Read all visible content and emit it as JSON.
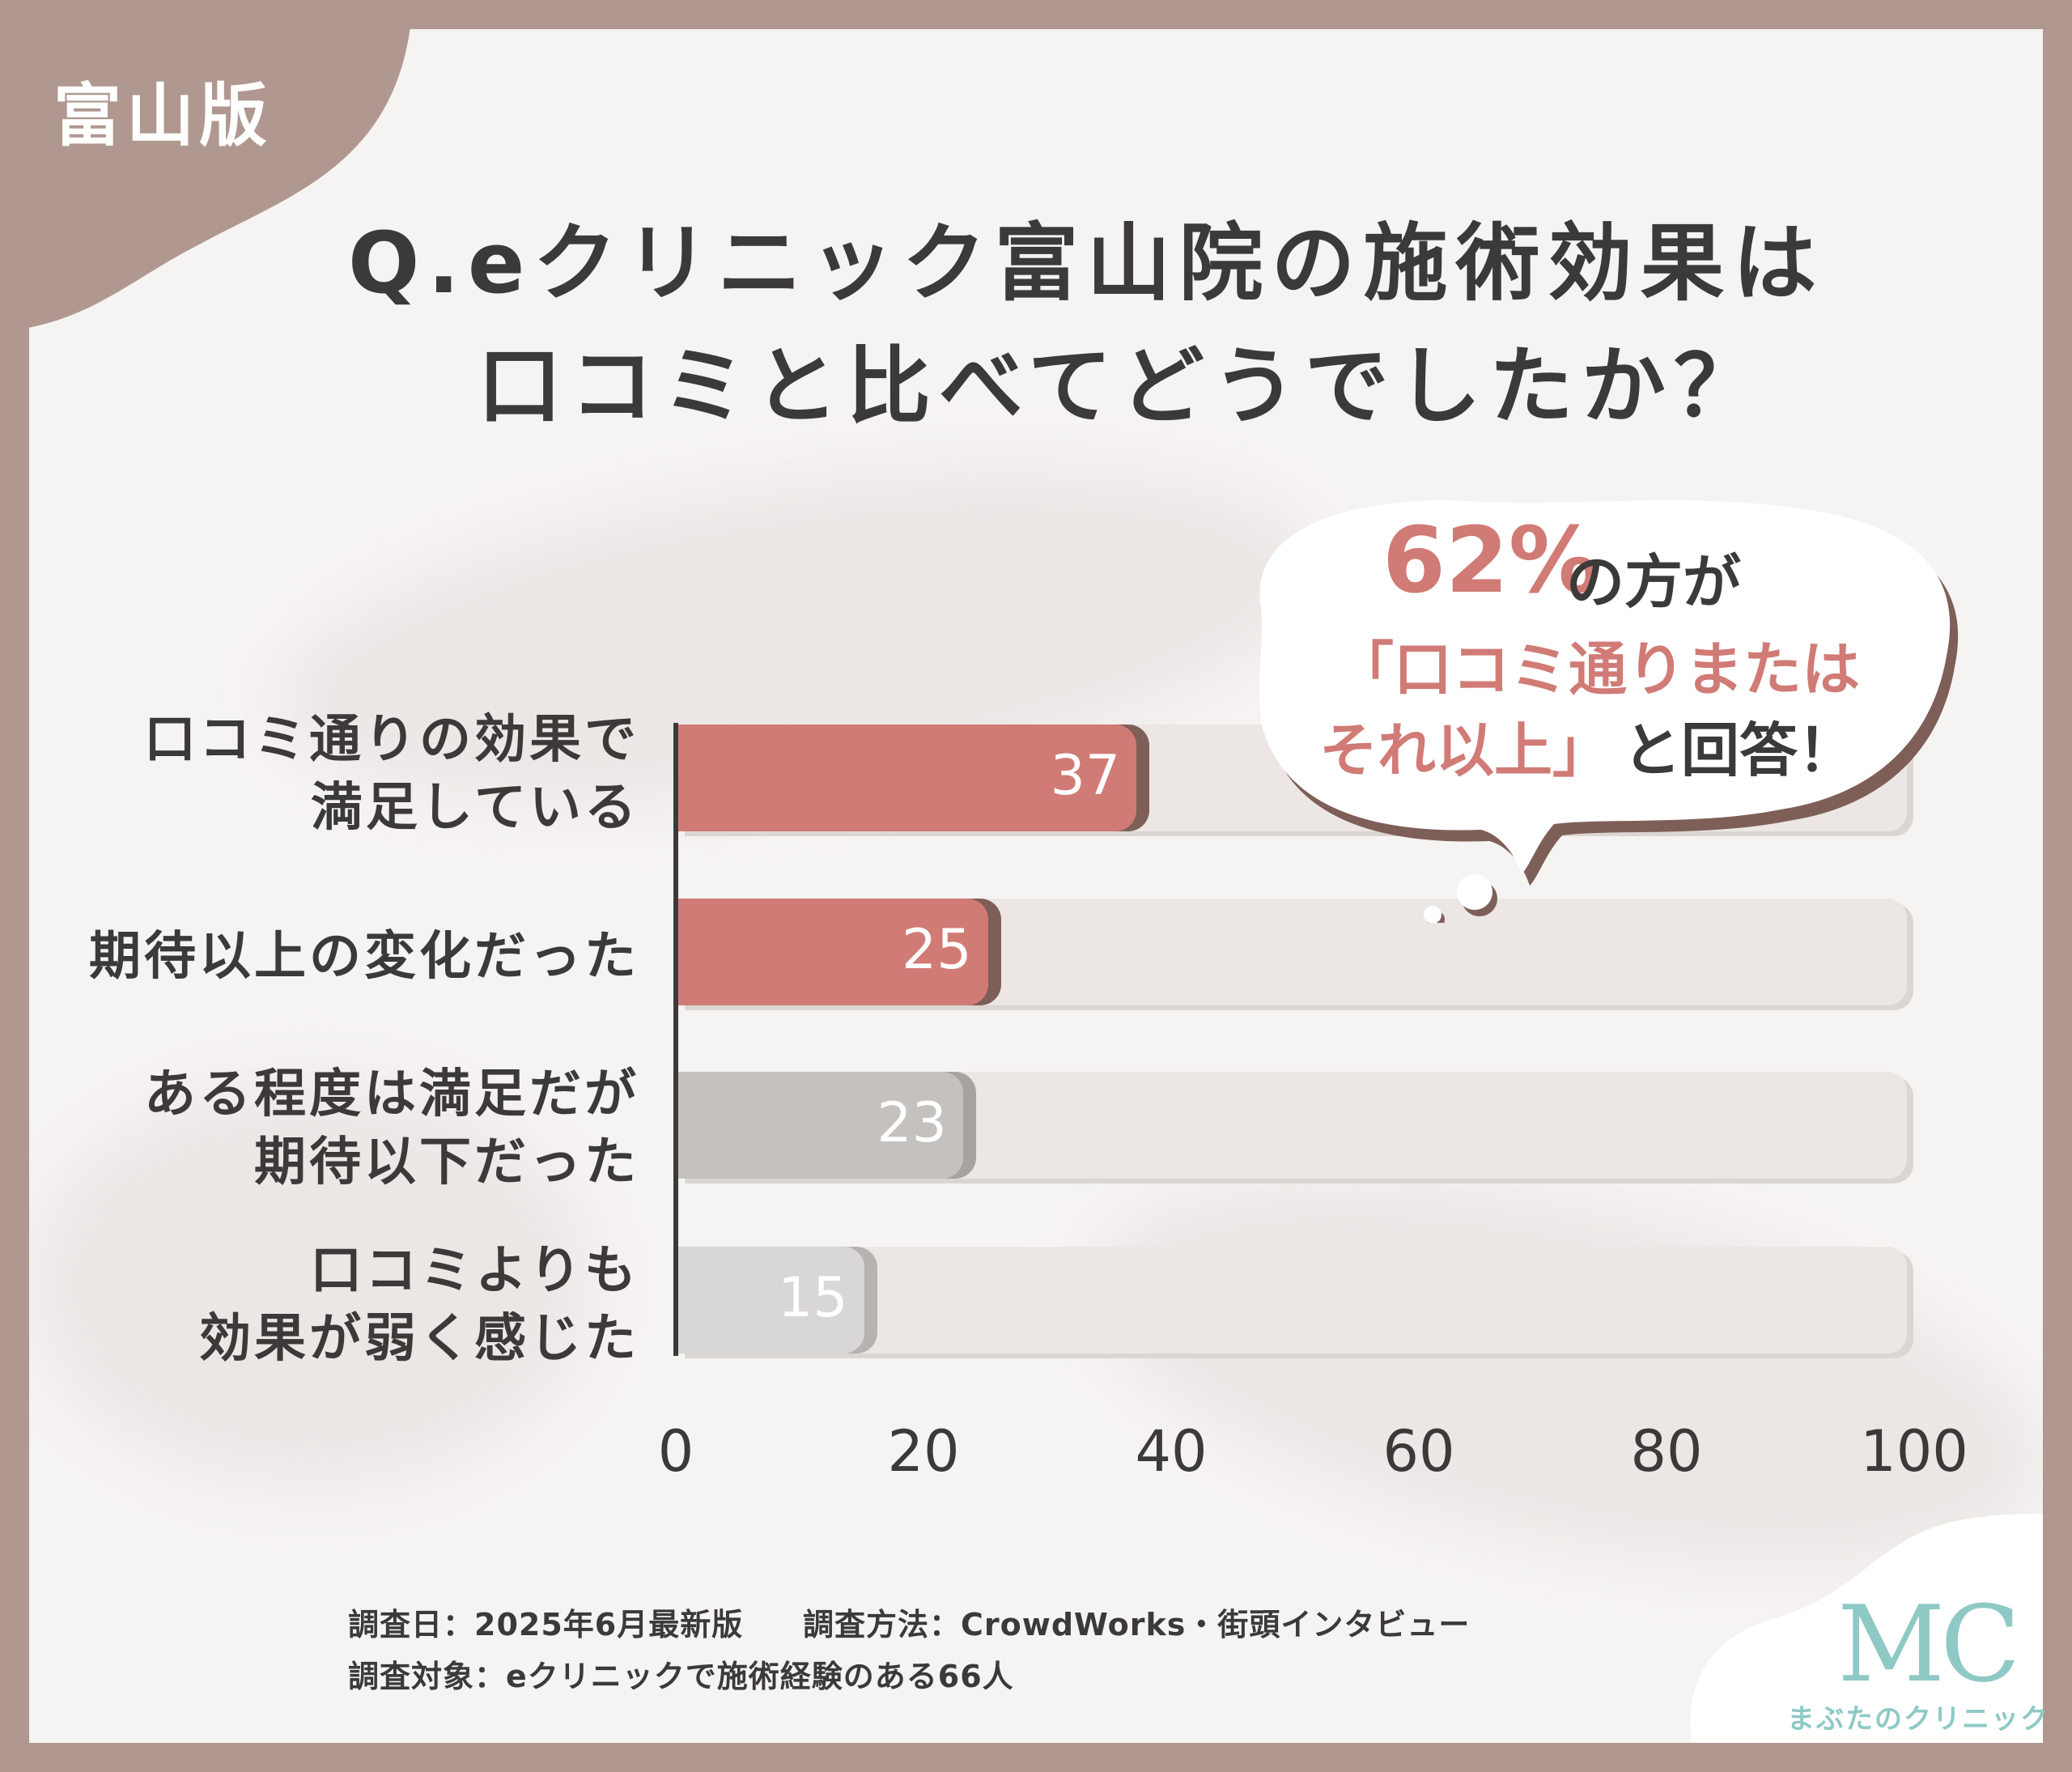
{
  "badge": {
    "region": "富山版"
  },
  "title": {
    "line1": "Q.eクリニック富山院の施術効果は",
    "line2": "口コミと比べてどうでしたか？"
  },
  "callout": {
    "percent": "62%",
    "suffix": "の方が",
    "quote_line1": "「口コミ通りまたは",
    "quote_line2": "それ以上」",
    "ending": "と回答！"
  },
  "chart_data": {
    "type": "bar",
    "orientation": "horizontal",
    "title": "Q.eクリニック富山院の施術効果は口コミと比べてどうでしたか？",
    "xlabel": "",
    "ylabel": "",
    "xlim": [
      0,
      100
    ],
    "categories": [
      {
        "line1": "口コミ通りの効果で",
        "line2": "満足している",
        "value": 37,
        "label": "37"
      },
      {
        "line1": "期待以上の変化だった",
        "line2": "",
        "value": 25,
        "label": "25"
      },
      {
        "line1": "ある程度は満足だが",
        "line2": "期待以下だった",
        "value": 23,
        "label": "23"
      },
      {
        "line1": "口コミよりも",
        "line2": "効果が弱く感じた",
        "value": 15,
        "label": "15"
      }
    ],
    "bar_colors": [
      "#d17b76",
      "#d17b76",
      "#c4c1bf",
      "#d9d7d6"
    ],
    "bar_shadow_colors": [
      "#7e5f58",
      "#7e5f58",
      "#a8a3a1",
      "#b7b3b1"
    ],
    "track_color": "#ece7e5",
    "ticks": [
      "0",
      "20",
      "40",
      "60",
      "80",
      "100"
    ]
  },
  "footer": {
    "survey_date": "調査日：2025年6月最新版",
    "survey_method": "調査方法：CrowdWorks・街頭インタビュー",
    "survey_target": "調査対象：eクリニックで施術経験のある66人"
  },
  "logo": {
    "monogram": "MC",
    "name": "まぶたのクリニック"
  },
  "colors": {
    "frame": "#b09890",
    "accent": "#d17b76",
    "text": "#3c3a39",
    "logo": "#8fc9c6"
  }
}
